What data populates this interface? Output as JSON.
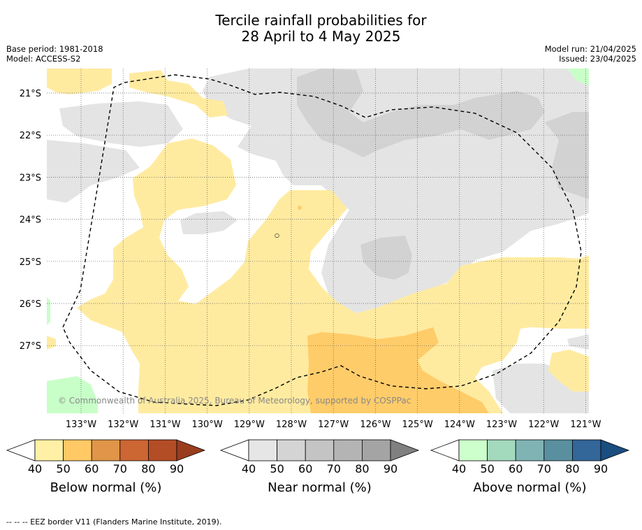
{
  "title_line1": "Tercile rainfall probabilities for",
  "title_line2": "28 April to 4 May 2025",
  "meta_left": {
    "line1": "Base period: 1981-2018",
    "line2": "Model: ACCESS-S2"
  },
  "meta_right": {
    "line1": "Model run: 21/04/2025",
    "line2": "Issued: 23/04/2025"
  },
  "lat_labels": [
    "21°S",
    "22°S",
    "23°S",
    "24°S",
    "25°S",
    "26°S",
    "27°S"
  ],
  "lon_labels": [
    "133°W",
    "132°W",
    "131°W",
    "130°W",
    "129°W",
    "128°W",
    "127°W",
    "126°W",
    "125°W",
    "124°W",
    "123°W",
    "122°W",
    "121°W"
  ],
  "copyright": "© Commonwealth of Australia 2025, Bureau of Meteorology, supported by COSPPac",
  "colorbars": [
    {
      "title": "Below normal (%)",
      "colors": [
        "#fff0a5",
        "#ffc966",
        "#e09548",
        "#cc6633",
        "#b34d26",
        "#993d1f"
      ],
      "ticks": [
        "40",
        "50",
        "60",
        "70",
        "80",
        "90"
      ]
    },
    {
      "title": "Near normal (%)",
      "colors": [
        "#e6e6e6",
        "#d4d4d4",
        "#c4c4c4",
        "#b4b4b4",
        "#a4a4a4",
        "#808080"
      ],
      "ticks": [
        "40",
        "50",
        "60",
        "70",
        "80",
        "90"
      ]
    },
    {
      "title": "Above normal (%)",
      "colors": [
        "#ccffcc",
        "#a3d9bd",
        "#80b3b3",
        "#598f9f",
        "#336699",
        "#1a4d80"
      ],
      "ticks": [
        "40",
        "50",
        "60",
        "70",
        "80",
        "90"
      ]
    }
  ],
  "footer": "--  --  -- EEZ border V11 (Flanders Marine Institute, 2019).",
  "colors": {
    "below40": "#ffeba0",
    "below50": "#ffcc6a",
    "near40": "#e4e4e4",
    "near50": "#d2d2d2",
    "above40": "#c8ffc8"
  }
}
